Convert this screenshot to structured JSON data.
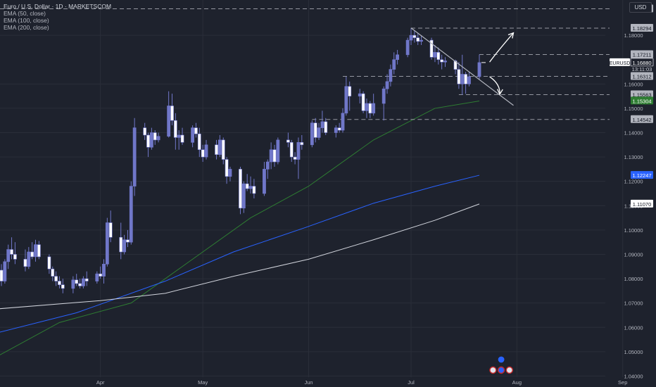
{
  "header": {
    "title": "Euro / U.S. Dollar · 1D · MARKETSCOM",
    "indicators": [
      "EMA (50, close)",
      "EMA (100, close)",
      "EMA (200, close)"
    ],
    "currency_button": "USD"
  },
  "symbol_tag": "EURUSD",
  "countdown": "13:11:03",
  "colors": {
    "background": "#1e222d",
    "candle": "#7077c9",
    "ema50": "#2e7d32",
    "ema100": "#2962ff",
    "ema200": "#d1d4dc",
    "grid": "#2a2e39",
    "level_line": "#9598a1"
  },
  "chart_data": {
    "type": "candlestick",
    "symbol": "EURUSD",
    "timeframe": "1D",
    "y_range": [
      1.0355,
      1.1945
    ],
    "y_ticks": [
      "1.18000",
      "1.16000",
      "1.15000",
      "1.14000",
      "1.13000",
      "1.12000",
      "1.11000",
      "1.10000",
      "1.09000",
      "1.08000",
      "1.07000",
      "1.06000",
      "1.05000",
      "1.04000"
    ],
    "x_ticks": [
      "Apr",
      "May",
      "Jun",
      "Jul",
      "Aug",
      "Sep"
    ],
    "price_labels": [
      {
        "value": "1.19088",
        "style": "level"
      },
      {
        "value": "1.18294",
        "style": "level"
      },
      {
        "value": "1.17211",
        "style": "level"
      },
      {
        "value": "1.16880",
        "style": "current"
      },
      {
        "value": "1.16312",
        "style": "level"
      },
      {
        "value": "1.15563",
        "style": "level"
      },
      {
        "value": "1.15304",
        "style": "ema50"
      },
      {
        "value": "1.14542",
        "style": "level"
      },
      {
        "value": "1.12247",
        "style": "ema100"
      },
      {
        "value": "1.11070",
        "style": "ema200"
      }
    ],
    "levels": [
      1.19088,
      1.18294,
      1.17211,
      1.16312,
      1.15563,
      1.14542
    ],
    "current_price": 1.1688,
    "trendline": {
      "from": [
        "2025-07-01",
        1.183
      ],
      "to": [
        "2025-07-31",
        1.1512
      ]
    },
    "arrows": [
      {
        "direction": "up",
        "from": [
          "2025-07-24",
          1.169
        ],
        "to": [
          "2025-07-31",
          1.181
        ]
      },
      {
        "direction": "down",
        "from": [
          "2025-07-24",
          1.163
        ],
        "to": [
          "2025-07-27",
          1.1558
        ]
      }
    ],
    "ema_series": [
      {
        "period": 50,
        "points": [
          [
            "2025-03-01",
            1.0475
          ],
          [
            "2025-03-20",
            1.062
          ],
          [
            "2025-04-10",
            1.07
          ],
          [
            "2025-04-25",
            1.085
          ],
          [
            "2025-05-15",
            1.105
          ],
          [
            "2025-06-01",
            1.118
          ],
          [
            "2025-06-20",
            1.137
          ],
          [
            "2025-07-08",
            1.15
          ],
          [
            "2025-07-21",
            1.153
          ]
        ]
      },
      {
        "period": 100,
        "points": [
          [
            "2025-03-01",
            1.0575
          ],
          [
            "2025-03-25",
            1.066
          ],
          [
            "2025-04-20",
            1.079
          ],
          [
            "2025-05-10",
            1.091
          ],
          [
            "2025-05-31",
            1.101
          ],
          [
            "2025-06-20",
            1.111
          ],
          [
            "2025-07-08",
            1.118
          ],
          [
            "2025-07-21",
            1.1225
          ]
        ]
      },
      {
        "period": 200,
        "points": [
          [
            "2025-03-01",
            1.0675
          ],
          [
            "2025-04-01",
            1.071
          ],
          [
            "2025-04-20",
            1.074
          ],
          [
            "2025-05-10",
            1.081
          ],
          [
            "2025-06-01",
            1.088
          ],
          [
            "2025-06-20",
            1.096
          ],
          [
            "2025-07-08",
            1.104
          ],
          [
            "2025-07-21",
            1.1107
          ]
        ]
      }
    ],
    "candles": [
      [
        "2025-03-03",
        1.0835,
        1.086,
        1.077,
        1.079
      ],
      [
        "2025-03-04",
        1.079,
        1.088,
        1.078,
        1.087
      ],
      [
        "2025-03-05",
        1.087,
        1.094,
        1.084,
        1.092
      ],
      [
        "2025-03-06",
        1.092,
        1.097,
        1.088,
        1.09
      ],
      [
        "2025-03-07",
        1.09,
        1.095,
        1.086,
        1.088
      ],
      [
        "2025-03-10",
        1.088,
        1.092,
        1.083,
        1.085
      ],
      [
        "2025-03-11",
        1.085,
        1.093,
        1.084,
        1.091
      ],
      [
        "2025-03-12",
        1.091,
        1.095,
        1.088,
        1.089
      ],
      [
        "2025-03-13",
        1.089,
        1.096,
        1.087,
        1.094
      ],
      [
        "2025-03-14",
        1.094,
        1.0955,
        1.088,
        1.089
      ],
      [
        "2025-03-17",
        1.089,
        1.09,
        1.082,
        1.084
      ],
      [
        "2025-03-18",
        1.084,
        1.085,
        1.079,
        1.081
      ],
      [
        "2025-03-19",
        1.081,
        1.083,
        1.077,
        1.079
      ],
      [
        "2025-03-20",
        1.079,
        1.081,
        1.076,
        1.0775
      ],
      [
        "2025-03-21",
        1.0775,
        1.08,
        1.074,
        1.076
      ],
      [
        "2025-03-24",
        1.076,
        1.081,
        1.074,
        1.0795
      ],
      [
        "2025-03-25",
        1.0795,
        1.082,
        1.077,
        1.078
      ],
      [
        "2025-03-26",
        1.078,
        1.08,
        1.076,
        1.077
      ],
      [
        "2025-03-27",
        1.077,
        1.081,
        1.076,
        1.08
      ],
      [
        "2025-03-28",
        1.08,
        1.083,
        1.077,
        1.079
      ],
      [
        "2025-03-31",
        1.079,
        1.083,
        1.078,
        1.082
      ],
      [
        "2025-04-01",
        1.082,
        1.085,
        1.08,
        1.081
      ],
      [
        "2025-04-02",
        1.081,
        1.088,
        1.078,
        1.086
      ],
      [
        "2025-04-03",
        1.086,
        1.105,
        1.085,
        1.103
      ],
      [
        "2025-04-04",
        1.103,
        1.108,
        1.095,
        1.097
      ],
      [
        "2025-04-07",
        1.097,
        1.103,
        1.088,
        1.091
      ],
      [
        "2025-04-08",
        1.091,
        1.098,
        1.09,
        1.096
      ],
      [
        "2025-04-09",
        1.096,
        1.1,
        1.093,
        1.095
      ],
      [
        "2025-04-10",
        1.095,
        1.12,
        1.094,
        1.118
      ],
      [
        "2025-04-11",
        1.118,
        1.146,
        1.114,
        1.142
      ],
      [
        "2025-04-14",
        1.142,
        1.144,
        1.137,
        1.139
      ],
      [
        "2025-04-15",
        1.139,
        1.14,
        1.13,
        1.134
      ],
      [
        "2025-04-16",
        1.134,
        1.142,
        1.133,
        1.14
      ],
      [
        "2025-04-17",
        1.14,
        1.141,
        1.135,
        1.137
      ],
      [
        "2025-04-18",
        1.137,
        1.14,
        1.136,
        1.1385
      ],
      [
        "2025-04-21",
        1.1385,
        1.157,
        1.138,
        1.151
      ],
      [
        "2025-04-22",
        1.151,
        1.156,
        1.143,
        1.145
      ],
      [
        "2025-04-23",
        1.145,
        1.148,
        1.133,
        1.138
      ],
      [
        "2025-04-24",
        1.138,
        1.141,
        1.133,
        1.139
      ],
      [
        "2025-04-25",
        1.139,
        1.142,
        1.135,
        1.136
      ],
      [
        "2025-04-28",
        1.136,
        1.143,
        1.134,
        1.142
      ],
      [
        "2025-04-29",
        1.142,
        1.144,
        1.138,
        1.1395
      ],
      [
        "2025-04-30",
        1.1395,
        1.142,
        1.13,
        1.133
      ],
      [
        "2025-05-01",
        1.133,
        1.135,
        1.128,
        1.13
      ],
      [
        "2025-05-02",
        1.13,
        1.137,
        1.129,
        1.135
      ],
      [
        "2025-05-05",
        1.135,
        1.137,
        1.129,
        1.131
      ],
      [
        "2025-05-06",
        1.131,
        1.139,
        1.13,
        1.137
      ],
      [
        "2025-05-07",
        1.137,
        1.138,
        1.127,
        1.129
      ],
      [
        "2025-05-08",
        1.129,
        1.13,
        1.119,
        1.122
      ],
      [
        "2025-05-09",
        1.122,
        1.126,
        1.12,
        1.125
      ],
      [
        "2025-05-12",
        1.125,
        1.126,
        1.1065,
        1.109
      ],
      [
        "2025-05-13",
        1.109,
        1.12,
        1.107,
        1.119
      ],
      [
        "2025-05-14",
        1.119,
        1.123,
        1.116,
        1.117
      ],
      [
        "2025-05-15",
        1.117,
        1.122,
        1.115,
        1.118
      ],
      [
        "2025-05-16",
        1.118,
        1.121,
        1.113,
        1.115
      ],
      [
        "2025-05-19",
        1.115,
        1.128,
        1.114,
        1.125
      ],
      [
        "2025-05-20",
        1.125,
        1.129,
        1.121,
        1.128
      ],
      [
        "2025-05-21",
        1.128,
        1.136,
        1.125,
        1.133
      ],
      [
        "2025-05-22",
        1.133,
        1.135,
        1.126,
        1.128
      ],
      [
        "2025-05-23",
        1.128,
        1.138,
        1.127,
        1.137
      ],
      [
        "2025-05-26",
        1.137,
        1.14,
        1.134,
        1.136
      ],
      [
        "2025-05-27",
        1.136,
        1.137,
        1.128,
        1.13
      ],
      [
        "2025-05-28",
        1.13,
        1.132,
        1.127,
        1.129
      ],
      [
        "2025-05-29",
        1.129,
        1.138,
        1.121,
        1.136
      ],
      [
        "2025-05-30",
        1.136,
        1.139,
        1.133,
        1.135
      ],
      [
        "2025-06-02",
        1.135,
        1.145,
        1.134,
        1.144
      ],
      [
        "2025-06-03",
        1.144,
        1.146,
        1.136,
        1.138
      ],
      [
        "2025-06-04",
        1.138,
        1.144,
        1.137,
        1.142
      ],
      [
        "2025-06-05",
        1.142,
        1.149,
        1.14,
        1.1445
      ],
      [
        "2025-06-06",
        1.1445,
        1.146,
        1.139,
        1.14
      ],
      [
        "2025-06-09",
        1.14,
        1.143,
        1.138,
        1.142
      ],
      [
        "2025-06-10",
        1.142,
        1.144,
        1.14,
        1.141
      ],
      [
        "2025-06-11",
        1.141,
        1.15,
        1.14,
        1.148
      ],
      [
        "2025-06-12",
        1.148,
        1.163,
        1.147,
        1.159
      ],
      [
        "2025-06-13",
        1.159,
        1.161,
        1.149,
        1.155
      ],
      [
        "2025-06-16",
        1.155,
        1.158,
        1.152,
        1.156
      ],
      [
        "2025-06-17",
        1.156,
        1.157,
        1.148,
        1.149
      ],
      [
        "2025-06-18",
        1.149,
        1.154,
        1.146,
        1.152
      ],
      [
        "2025-06-19",
        1.152,
        1.153,
        1.146,
        1.148
      ],
      [
        "2025-06-20",
        1.148,
        1.156,
        1.147,
        1.152
      ],
      [
        "2025-06-23",
        1.152,
        1.159,
        1.145,
        1.158
      ],
      [
        "2025-06-24",
        1.158,
        1.164,
        1.156,
        1.161
      ],
      [
        "2025-06-25",
        1.161,
        1.168,
        1.159,
        1.166
      ],
      [
        "2025-06-26",
        1.166,
        1.173,
        1.164,
        1.17
      ],
      [
        "2025-06-27",
        1.17,
        1.174,
        1.168,
        1.172
      ],
      [
        "2025-06-30",
        1.172,
        1.179,
        1.171,
        1.178
      ],
      [
        "2025-07-01",
        1.178,
        1.183,
        1.176,
        1.18
      ],
      [
        "2025-07-02",
        1.18,
        1.182,
        1.177,
        1.179
      ],
      [
        "2025-07-03",
        1.179,
        1.181,
        1.176,
        1.1775
      ],
      [
        "2025-07-04",
        1.1775,
        1.18,
        1.176,
        1.178
      ],
      [
        "2025-07-07",
        1.178,
        1.179,
        1.17,
        1.171
      ],
      [
        "2025-07-08",
        1.171,
        1.176,
        1.169,
        1.173
      ],
      [
        "2025-07-09",
        1.173,
        1.175,
        1.168,
        1.17
      ],
      [
        "2025-07-10",
        1.17,
        1.172,
        1.166,
        1.169
      ],
      [
        "2025-07-11",
        1.169,
        1.171,
        1.167,
        1.1695
      ],
      [
        "2025-07-14",
        1.1695,
        1.17,
        1.164,
        1.166
      ],
      [
        "2025-07-15",
        1.166,
        1.169,
        1.158,
        1.16
      ],
      [
        "2025-07-16",
        1.16,
        1.172,
        1.1555,
        1.164
      ],
      [
        "2025-07-17",
        1.164,
        1.165,
        1.156,
        1.16
      ],
      [
        "2025-07-18",
        1.16,
        1.165,
        1.159,
        1.163
      ],
      [
        "2025-07-21",
        1.163,
        1.1721,
        1.162,
        1.1688
      ]
    ]
  }
}
